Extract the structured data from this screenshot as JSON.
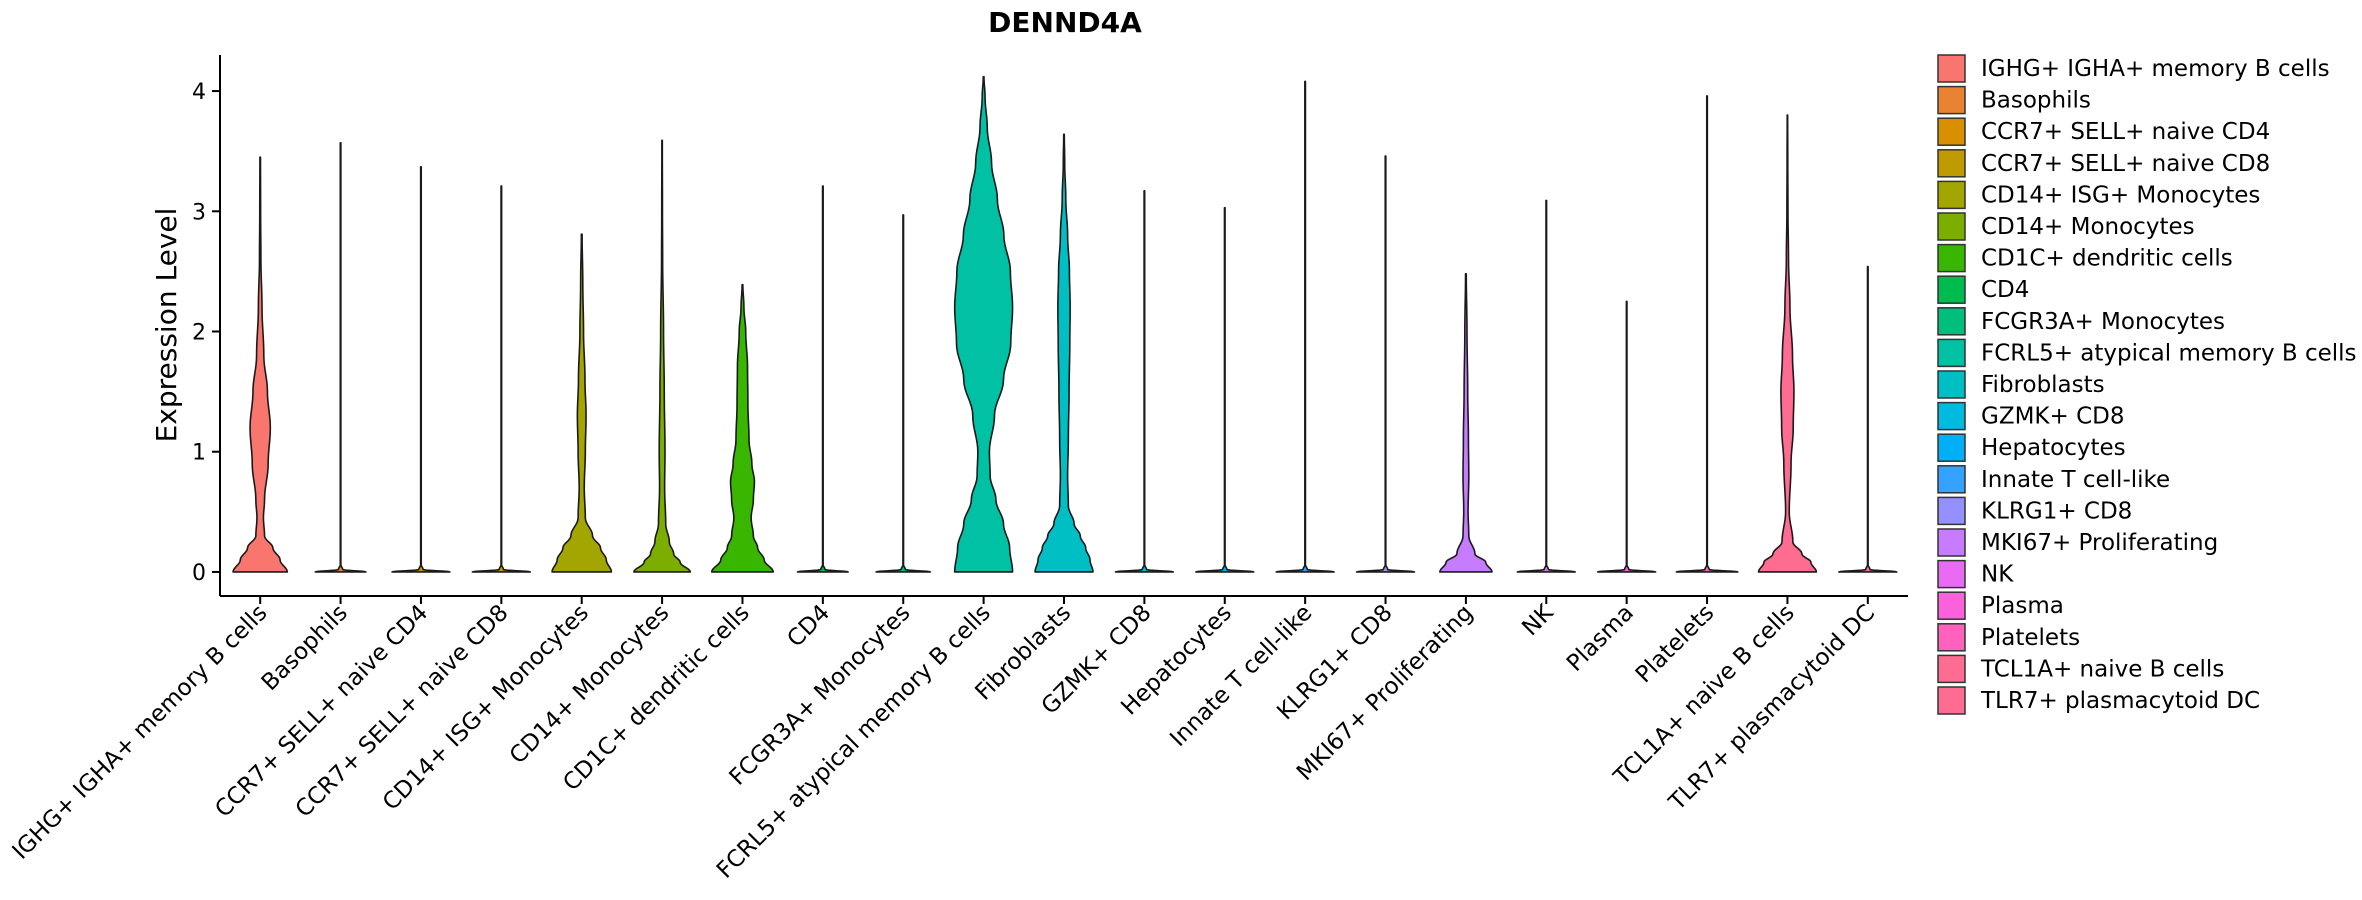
{
  "chart_data": {
    "type": "violin",
    "title": "DENND4A",
    "xlabel": "",
    "ylabel": "Expression Level",
    "ylim": [
      -0.2,
      4.3
    ],
    "yticks": [
      0,
      1,
      2,
      3,
      4
    ],
    "legend_position": "right",
    "categories": [
      "IGHG+ IGHA+ memory B cells",
      "Basophils",
      "CCR7+ SELL+ naive CD4",
      "CCR7+ SELL+ naive CD8",
      "CD14+ ISG+ Monocytes",
      "CD14+ Monocytes",
      "CD1C+ dendritic cells",
      "CD4",
      "FCGR3A+ Monocytes",
      "FCRL5+ atypical memory B cells",
      "Fibroblasts",
      "GZMK+ CD8",
      "Hepatocytes",
      "Innate T cell-like",
      "KLRG1+ CD8",
      "MKI67+ Proliferating",
      "NK",
      "Plasma",
      "Platelets",
      "TCL1A+ naive B cells",
      "TLR7+ plasmacytoid DC"
    ],
    "colors": [
      "#F8766D",
      "#EA8331",
      "#D89000",
      "#C09B00",
      "#A3A500",
      "#7CAE00",
      "#39B600",
      "#00BB4E",
      "#00BF7D",
      "#00C1A3",
      "#00BFC4",
      "#00BAE0",
      "#00B0F6",
      "#35A2FF",
      "#9590FF",
      "#C77CFF",
      "#E76BF3",
      "#FA62DB",
      "#FF62BC",
      "#FF6C91",
      "#FF6C91"
    ],
    "max_values": [
      3.45,
      3.57,
      3.37,
      3.21,
      2.81,
      3.59,
      2.39,
      3.21,
      2.97,
      4.12,
      3.64,
      3.17,
      3.03,
      4.08,
      3.46,
      2.48,
      3.09,
      2.25,
      3.96,
      3.8,
      2.54
    ],
    "density_profiles": [
      [
        [
          0,
          0.75
        ],
        [
          0.1,
          0.55
        ],
        [
          0.2,
          0.35
        ],
        [
          0.3,
          0.12
        ],
        [
          0.45,
          0.09
        ],
        [
          0.6,
          0.12
        ],
        [
          0.9,
          0.22
        ],
        [
          1.2,
          0.28
        ],
        [
          1.5,
          0.2
        ],
        [
          1.8,
          0.1
        ],
        [
          2.2,
          0.05
        ],
        [
          2.6,
          0.02
        ],
        [
          3.0,
          0.012
        ],
        [
          3.45,
          0.008
        ]
      ],
      [
        [
          0,
          0.7
        ],
        [
          0.02,
          0.06
        ],
        [
          0.06,
          0.008
        ],
        [
          3.57,
          0.008
        ]
      ],
      [
        [
          0,
          0.8
        ],
        [
          0.02,
          0.06
        ],
        [
          0.06,
          0.008
        ],
        [
          3.37,
          0.008
        ]
      ],
      [
        [
          0,
          0.8
        ],
        [
          0.02,
          0.06
        ],
        [
          0.06,
          0.008
        ],
        [
          3.21,
          0.008
        ]
      ],
      [
        [
          0,
          0.82
        ],
        [
          0.1,
          0.68
        ],
        [
          0.2,
          0.52
        ],
        [
          0.3,
          0.3
        ],
        [
          0.45,
          0.1
        ],
        [
          0.7,
          0.07
        ],
        [
          1.0,
          0.1
        ],
        [
          1.3,
          0.12
        ],
        [
          1.6,
          0.09
        ],
        [
          2.0,
          0.05
        ],
        [
          2.4,
          0.03
        ],
        [
          2.81,
          0.01
        ]
      ],
      [
        [
          0,
          0.78
        ],
        [
          0.08,
          0.5
        ],
        [
          0.15,
          0.32
        ],
        [
          0.25,
          0.2
        ],
        [
          0.4,
          0.1
        ],
        [
          0.7,
          0.07
        ],
        [
          1.0,
          0.08
        ],
        [
          1.5,
          0.06
        ],
        [
          2.0,
          0.04
        ],
        [
          2.6,
          0.015
        ],
        [
          3.0,
          0.01
        ],
        [
          3.59,
          0.006
        ]
      ],
      [
        [
          0,
          0.85
        ],
        [
          0.1,
          0.6
        ],
        [
          0.2,
          0.42
        ],
        [
          0.3,
          0.3
        ],
        [
          0.45,
          0.24
        ],
        [
          0.6,
          0.3
        ],
        [
          0.75,
          0.33
        ],
        [
          0.9,
          0.26
        ],
        [
          1.1,
          0.18
        ],
        [
          1.4,
          0.15
        ],
        [
          1.7,
          0.14
        ],
        [
          2.0,
          0.09
        ],
        [
          2.2,
          0.04
        ],
        [
          2.39,
          0.01
        ]
      ],
      [
        [
          0,
          0.7
        ],
        [
          0.02,
          0.06
        ],
        [
          0.06,
          0.008
        ],
        [
          3.21,
          0.008
        ]
      ],
      [
        [
          0,
          0.75
        ],
        [
          0.02,
          0.06
        ],
        [
          0.06,
          0.008
        ],
        [
          2.97,
          0.008
        ]
      ],
      [
        [
          0,
          0.8
        ],
        [
          0.2,
          0.72
        ],
        [
          0.4,
          0.55
        ],
        [
          0.6,
          0.34
        ],
        [
          0.8,
          0.18
        ],
        [
          1.0,
          0.16
        ],
        [
          1.3,
          0.3
        ],
        [
          1.6,
          0.55
        ],
        [
          1.9,
          0.75
        ],
        [
          2.2,
          0.8
        ],
        [
          2.5,
          0.74
        ],
        [
          2.8,
          0.56
        ],
        [
          3.1,
          0.38
        ],
        [
          3.4,
          0.22
        ],
        [
          3.7,
          0.1
        ],
        [
          3.95,
          0.04
        ],
        [
          4.12,
          0.01
        ]
      ],
      [
        [
          0,
          0.8
        ],
        [
          0.1,
          0.72
        ],
        [
          0.2,
          0.6
        ],
        [
          0.3,
          0.45
        ],
        [
          0.4,
          0.28
        ],
        [
          0.55,
          0.12
        ],
        [
          0.8,
          0.1
        ],
        [
          1.1,
          0.12
        ],
        [
          1.5,
          0.14
        ],
        [
          1.9,
          0.16
        ],
        [
          2.2,
          0.17
        ],
        [
          2.5,
          0.15
        ],
        [
          2.8,
          0.1
        ],
        [
          3.1,
          0.05
        ],
        [
          3.4,
          0.02
        ],
        [
          3.64,
          0.008
        ]
      ],
      [
        [
          0,
          0.8
        ],
        [
          0.02,
          0.06
        ],
        [
          0.06,
          0.008
        ],
        [
          3.17,
          0.008
        ]
      ],
      [
        [
          0,
          0.8
        ],
        [
          0.02,
          0.06
        ],
        [
          0.06,
          0.008
        ],
        [
          3.03,
          0.008
        ]
      ],
      [
        [
          0,
          0.8
        ],
        [
          0.02,
          0.06
        ],
        [
          0.06,
          0.008
        ],
        [
          4.08,
          0.008
        ]
      ],
      [
        [
          0,
          0.8
        ],
        [
          0.02,
          0.06
        ],
        [
          0.06,
          0.008
        ],
        [
          3.46,
          0.008
        ]
      ],
      [
        [
          0,
          0.72
        ],
        [
          0.08,
          0.55
        ],
        [
          0.15,
          0.25
        ],
        [
          0.3,
          0.08
        ],
        [
          0.5,
          0.06
        ],
        [
          0.8,
          0.08
        ],
        [
          1.1,
          0.07
        ],
        [
          1.5,
          0.05
        ],
        [
          2.0,
          0.03
        ],
        [
          2.48,
          0.01
        ]
      ],
      [
        [
          0,
          0.8
        ],
        [
          0.02,
          0.06
        ],
        [
          0.06,
          0.008
        ],
        [
          3.09,
          0.008
        ]
      ],
      [
        [
          0,
          0.8
        ],
        [
          0.02,
          0.06
        ],
        [
          0.06,
          0.008
        ],
        [
          2.25,
          0.008
        ]
      ],
      [
        [
          0,
          0.85
        ],
        [
          0.02,
          0.06
        ],
        [
          0.06,
          0.008
        ],
        [
          3.96,
          0.008
        ]
      ],
      [
        [
          0,
          0.8
        ],
        [
          0.08,
          0.65
        ],
        [
          0.15,
          0.4
        ],
        [
          0.25,
          0.15
        ],
        [
          0.5,
          0.05
        ],
        [
          0.9,
          0.1
        ],
        [
          1.2,
          0.16
        ],
        [
          1.5,
          0.18
        ],
        [
          1.8,
          0.14
        ],
        [
          2.2,
          0.07
        ],
        [
          2.6,
          0.03
        ],
        [
          3.0,
          0.015
        ],
        [
          3.4,
          0.01
        ],
        [
          3.8,
          0.006
        ]
      ],
      [
        [
          0,
          0.8
        ],
        [
          0.02,
          0.06
        ],
        [
          0.06,
          0.008
        ],
        [
          2.54,
          0.008
        ]
      ]
    ]
  }
}
